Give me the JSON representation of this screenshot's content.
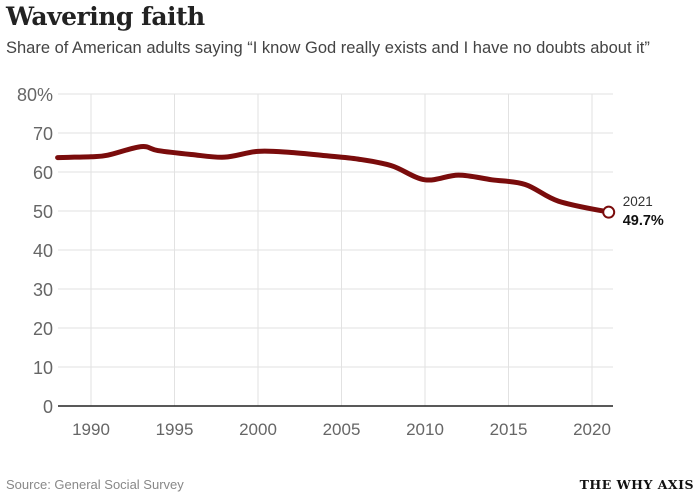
{
  "title": "Wavering faith",
  "subtitle": "Share of American adults saying “I know God really exists and I have no doubts about it”",
  "source": "Source: General Social Survey",
  "brand": "THE WHY AXIS",
  "colors": {
    "line": "#7a0c0c",
    "grid": "#e2e2e2",
    "axis": "#222222"
  },
  "chart_data": {
    "type": "line",
    "title": "Wavering faith",
    "xlim": [
      1988,
      2021
    ],
    "ylim": [
      0,
      80
    ],
    "yticks": [
      0,
      10,
      20,
      30,
      40,
      50,
      60,
      70,
      80
    ],
    "ytick_labels": [
      "0",
      "10",
      "20",
      "30",
      "40",
      "50",
      "60",
      "70",
      "80%"
    ],
    "xticks": [
      1990,
      1995,
      2000,
      2005,
      2010,
      2015,
      2020
    ],
    "grid": true,
    "x": [
      1988,
      1989,
      1990,
      1991,
      1993,
      1994,
      1996,
      1998,
      2000,
      2002,
      2004,
      2006,
      2008,
      2010,
      2012,
      2014,
      2016,
      2018,
      2021
    ],
    "values": [
      63.7,
      63.8,
      63.9,
      64.3,
      66.5,
      65.5,
      64.5,
      63.8,
      65.3,
      65.0,
      64.2,
      63.3,
      61.6,
      58.0,
      59.2,
      58.0,
      56.8,
      52.5,
      49.7
    ],
    "annotation": {
      "year_label": "2021",
      "value_label": "49.7%"
    }
  }
}
